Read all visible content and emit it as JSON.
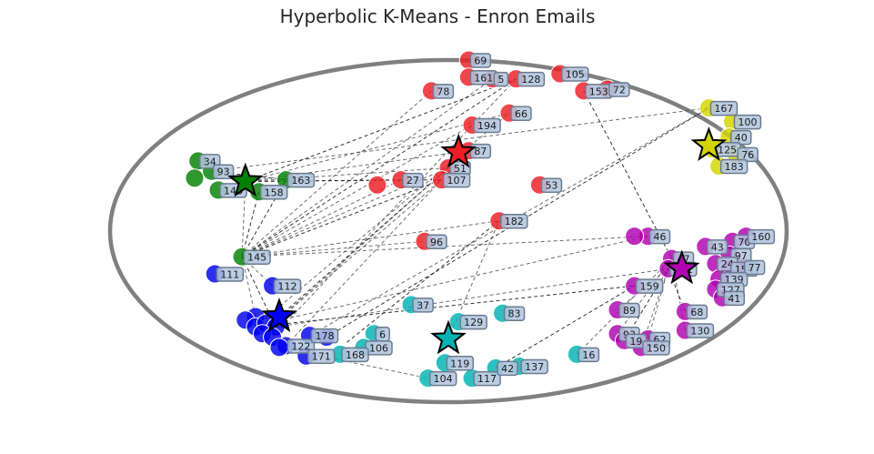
{
  "chart_data": {
    "type": "scatter",
    "title": "Hyperbolic K-Means - Enron Emails",
    "xlim": [
      -1,
      1
    ],
    "ylim": [
      -1,
      1
    ],
    "grid": false,
    "legend": "none",
    "disk_color": "#808080",
    "clusters": [
      {
        "color": "#ee1c24",
        "centroid": [
          0.03,
          0.46
        ],
        "members": [
          {
            "id": "69",
            "x": 0.06,
            "y": 1.0
          },
          {
            "id": "161",
            "x": 0.06,
            "y": 0.9
          },
          {
            "id": "78",
            "x": -0.05,
            "y": 0.82
          },
          {
            "id": "5",
            "x": 0.13,
            "y": 0.89
          },
          {
            "id": "128",
            "x": 0.2,
            "y": 0.89
          },
          {
            "id": "105",
            "x": 0.33,
            "y": 0.92
          },
          {
            "id": "153",
            "x": 0.4,
            "y": 0.82
          },
          {
            "id": "72",
            "x": 0.47,
            "y": 0.83
          },
          {
            "id": "66",
            "x": 0.18,
            "y": 0.69
          },
          {
            "id": "194",
            "x": 0.07,
            "y": 0.62
          },
          {
            "id": "87",
            "x": 0.06,
            "y": 0.47
          },
          {
            "id": "51",
            "x": 0.0,
            "y": 0.37
          },
          {
            "id": "107",
            "x": -0.02,
            "y": 0.3
          },
          {
            "id": "27",
            "x": -0.14,
            "y": 0.3
          },
          {
            "id": "",
            "x": -0.21,
            "y": 0.27
          },
          {
            "id": "53",
            "x": 0.27,
            "y": 0.27
          },
          {
            "id": "182",
            "x": 0.15,
            "y": 0.06
          },
          {
            "id": "96",
            "x": -0.07,
            "y": -0.06
          }
        ]
      },
      {
        "color": "#d4d400",
        "centroid": [
          0.77,
          0.5
        ],
        "members": [
          {
            "id": "167",
            "x": 0.77,
            "y": 0.72
          },
          {
            "id": "100",
            "x": 0.84,
            "y": 0.64
          },
          {
            "id": "40",
            "x": 0.83,
            "y": 0.55
          },
          {
            "id": "125",
            "x": 0.78,
            "y": 0.48
          },
          {
            "id": "76",
            "x": 0.85,
            "y": 0.45
          },
          {
            "id": "183",
            "x": 0.8,
            "y": 0.38
          }
        ]
      },
      {
        "color": "#008000",
        "centroid": [
          -0.6,
          0.29
        ],
        "members": [
          {
            "id": "34",
            "x": -0.74,
            "y": 0.41
          },
          {
            "id": "93",
            "x": -0.7,
            "y": 0.35
          },
          {
            "id": "",
            "x": -0.75,
            "y": 0.31
          },
          {
            "id": "148",
            "x": -0.68,
            "y": 0.24
          },
          {
            "id": "158",
            "x": -0.56,
            "y": 0.23
          },
          {
            "id": "163",
            "x": -0.48,
            "y": 0.3
          },
          {
            "id": "145",
            "x": -0.61,
            "y": -0.15
          }
        ]
      },
      {
        "color": "#0000ee",
        "centroid": [
          -0.5,
          -0.5
        ],
        "members": [
          {
            "id": "111",
            "x": -0.69,
            "y": -0.25
          },
          {
            "id": "112",
            "x": -0.52,
            "y": -0.32
          },
          {
            "id": "",
            "x": -0.57,
            "y": -0.5
          },
          {
            "id": "",
            "x": -0.6,
            "y": -0.52
          },
          {
            "id": "",
            "x": -0.57,
            "y": -0.56
          },
          {
            "id": "",
            "x": -0.54,
            "y": -0.54
          },
          {
            "id": "",
            "x": -0.51,
            "y": -0.56
          },
          {
            "id": "",
            "x": -0.55,
            "y": -0.6
          },
          {
            "id": "",
            "x": -0.52,
            "y": -0.62
          },
          {
            "id": "122",
            "x": -0.48,
            "y": -0.67
          },
          {
            "id": "",
            "x": -0.5,
            "y": -0.68
          },
          {
            "id": "178",
            "x": -0.41,
            "y": -0.61
          },
          {
            "id": "171",
            "x": -0.42,
            "y": -0.73
          },
          {
            "id": "",
            "x": -0.36,
            "y": -0.62
          }
        ]
      },
      {
        "color": "#00b2b2",
        "centroid": [
          0.0,
          -0.63
        ],
        "members": [
          {
            "id": "37",
            "x": -0.11,
            "y": -0.43
          },
          {
            "id": "129",
            "x": 0.03,
            "y": -0.53
          },
          {
            "id": "83",
            "x": 0.16,
            "y": -0.48
          },
          {
            "id": "6",
            "x": -0.22,
            "y": -0.6
          },
          {
            "id": "106",
            "x": -0.25,
            "y": -0.68
          },
          {
            "id": "168",
            "x": -0.32,
            "y": -0.72
          },
          {
            "id": "119",
            "x": -0.01,
            "y": -0.77
          },
          {
            "id": "104",
            "x": -0.06,
            "y": -0.86
          },
          {
            "id": "117",
            "x": 0.07,
            "y": -0.86
          },
          {
            "id": "42",
            "x": 0.14,
            "y": -0.8
          },
          {
            "id": "137",
            "x": 0.21,
            "y": -0.79
          },
          {
            "id": "16",
            "x": 0.38,
            "y": -0.72
          }
        ]
      },
      {
        "color": "#b000b0",
        "centroid": [
          0.69,
          -0.22
        ],
        "members": [
          {
            "id": "46",
            "x": 0.59,
            "y": -0.03
          },
          {
            "id": "",
            "x": 0.55,
            "y": -0.03
          },
          {
            "id": "43",
            "x": 0.76,
            "y": -0.09
          },
          {
            "id": "70",
            "x": 0.84,
            "y": -0.06
          },
          {
            "id": "160",
            "x": 0.88,
            "y": -0.03
          },
          {
            "id": "97",
            "x": 0.83,
            "y": -0.14
          },
          {
            "id": "47",
            "x": 0.66,
            "y": -0.16
          },
          {
            "id": "121",
            "x": 0.65,
            "y": -0.22
          },
          {
            "id": "24",
            "x": 0.79,
            "y": -0.19
          },
          {
            "id": "154",
            "x": 0.83,
            "y": -0.22
          },
          {
            "id": "77",
            "x": 0.87,
            "y": -0.21
          },
          {
            "id": "139",
            "x": 0.8,
            "y": -0.28
          },
          {
            "id": "127",
            "x": 0.79,
            "y": -0.34
          },
          {
            "id": "41",
            "x": 0.81,
            "y": -0.39
          },
          {
            "id": "159",
            "x": 0.55,
            "y": -0.32
          },
          {
            "id": "89",
            "x": 0.5,
            "y": -0.46
          },
          {
            "id": "68",
            "x": 0.7,
            "y": -0.47
          },
          {
            "id": "93",
            "x": 0.5,
            "y": -0.6
          },
          {
            "id": "130",
            "x": 0.7,
            "y": -0.58
          },
          {
            "id": "19",
            "x": 0.52,
            "y": -0.64
          },
          {
            "id": "62",
            "x": 0.59,
            "y": -0.63
          },
          {
            "id": "150",
            "x": 0.57,
            "y": -0.68
          }
        ]
      }
    ],
    "edges": [
      [
        -0.61,
        -0.15,
        -0.02,
        0.3
      ],
      [
        -0.61,
        -0.15,
        0.07,
        0.62
      ],
      [
        -0.61,
        -0.15,
        0.13,
        0.89
      ],
      [
        -0.61,
        -0.15,
        0.2,
        0.89
      ],
      [
        -0.61,
        -0.15,
        -0.05,
        0.82
      ],
      [
        -0.61,
        -0.15,
        -0.14,
        0.3
      ],
      [
        -0.61,
        -0.15,
        -0.48,
        0.3
      ],
      [
        -0.61,
        -0.15,
        0.15,
        0.06
      ],
      [
        -0.61,
        -0.15,
        -0.07,
        -0.06
      ],
      [
        -0.61,
        -0.15,
        -0.56,
        0.23
      ],
      [
        -0.61,
        -0.15,
        -0.52,
        -0.32
      ],
      [
        -0.61,
        -0.15,
        -0.57,
        -0.5
      ],
      [
        -0.61,
        -0.15,
        -0.51,
        -0.56
      ],
      [
        -0.61,
        -0.15,
        0.0,
        0.37
      ],
      [
        -0.61,
        -0.15,
        0.59,
        -0.03
      ],
      [
        -0.7,
        0.35,
        -0.48,
        0.3
      ],
      [
        -0.7,
        0.35,
        0.77,
        0.72
      ],
      [
        -0.6,
        0.29,
        -0.14,
        0.3
      ],
      [
        -0.6,
        0.29,
        -0.02,
        0.3
      ],
      [
        -0.6,
        0.29,
        0.06,
        0.47
      ],
      [
        -0.6,
        0.29,
        0.18,
        0.69
      ],
      [
        -0.6,
        0.29,
        0.2,
        0.89
      ],
      [
        -0.6,
        0.29,
        -0.61,
        -0.15
      ],
      [
        -0.6,
        0.29,
        0.0,
        0.37
      ],
      [
        -0.5,
        -0.5,
        0.0,
        0.37
      ],
      [
        -0.55,
        -0.6,
        0.0,
        0.37
      ],
      [
        -0.4,
        -0.6,
        0.77,
        0.72
      ],
      [
        -0.36,
        -0.62,
        0.77,
        0.72
      ],
      [
        -0.52,
        -0.62,
        0.2,
        0.89
      ],
      [
        -0.57,
        -0.56,
        0.18,
        0.69
      ],
      [
        -0.57,
        -0.56,
        0.55,
        -0.32
      ],
      [
        -0.51,
        -0.56,
        0.65,
        -0.22
      ],
      [
        -0.5,
        -0.68,
        -0.06,
        -0.86
      ],
      [
        -0.3,
        -0.65,
        0.15,
        0.06
      ],
      [
        -0.54,
        -0.54,
        0.59,
        -0.03
      ],
      [
        0.0,
        -0.63,
        0.15,
        0.06
      ],
      [
        0.14,
        -0.8,
        0.55,
        -0.32
      ],
      [
        0.38,
        -0.72,
        0.66,
        -0.16
      ],
      [
        0.5,
        -0.6,
        0.66,
        -0.16
      ],
      [
        0.52,
        -0.64,
        0.65,
        -0.22
      ],
      [
        0.57,
        -0.68,
        0.66,
        -0.16
      ],
      [
        0.59,
        -0.63,
        0.65,
        -0.22
      ],
      [
        0.7,
        -0.47,
        0.65,
        -0.22
      ],
      [
        0.7,
        -0.58,
        0.66,
        -0.16
      ],
      [
        0.5,
        -0.46,
        0.65,
        -0.22
      ],
      [
        0.4,
        0.82,
        0.66,
        -0.16
      ],
      [
        -0.48,
        -0.67,
        0.06,
        0.47
      ],
      [
        -0.55,
        -0.6,
        -0.02,
        0.3
      ]
    ]
  }
}
